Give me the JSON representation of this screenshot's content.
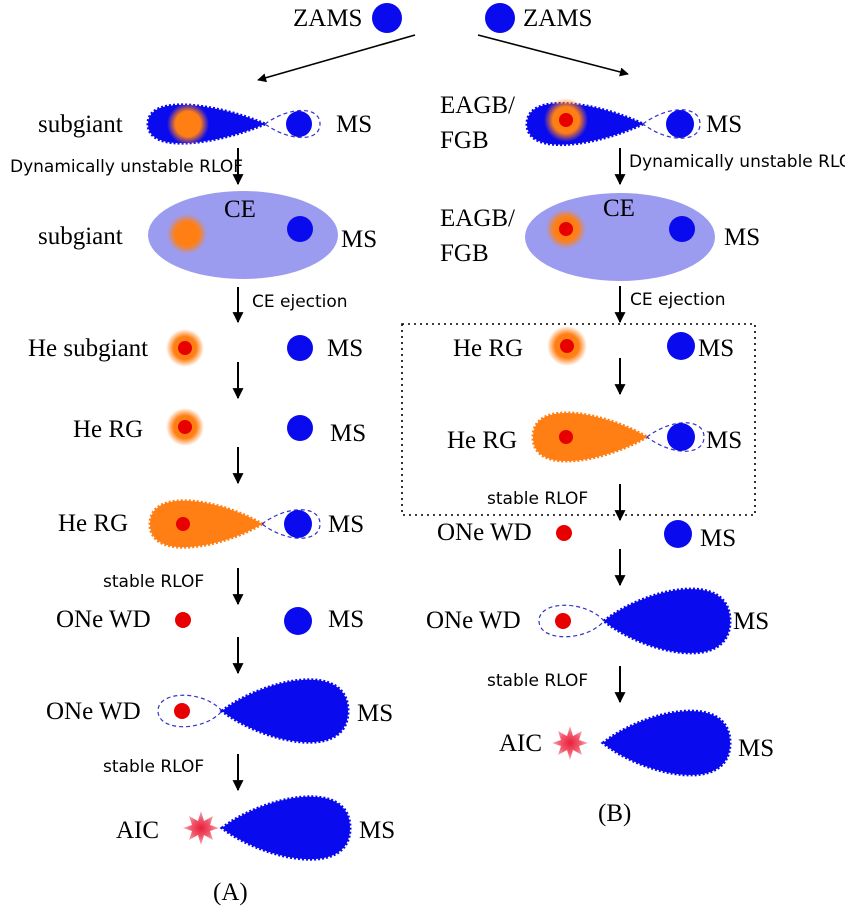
{
  "colors": {
    "ms_blue": "#0a0aee",
    "core_red": "#e80000",
    "envelope_orange": "#ff7f15",
    "ce_lavender": "#9b9bf0",
    "roche_dash": "#3232c8",
    "aic_pink": "#f04060"
  },
  "top": {
    "zams_left": "ZAMS",
    "zams_right": "ZAMS"
  },
  "channel_a": {
    "caption": "(A)",
    "s1": {
      "donor": "subgiant",
      "companion": "MS"
    },
    "t1": "Dynamically unstable RLOF",
    "s2": {
      "donor": "subgiant",
      "ce": "CE",
      "companion": "MS"
    },
    "t2": "CE ejection",
    "s3": {
      "donor": "He subgiant",
      "companion": "MS"
    },
    "s4": {
      "donor": "He RG",
      "companion": "MS"
    },
    "s5": {
      "donor": "He RG",
      "companion": "MS"
    },
    "t5": "stable RLOF",
    "s6": {
      "donor": "ONe WD",
      "companion": "MS"
    },
    "s7": {
      "donor": "ONe WD",
      "companion": "MS"
    },
    "t7": "stable RLOF",
    "s8": {
      "event": "AIC",
      "companion": "MS"
    }
  },
  "channel_b": {
    "caption": "(B)",
    "s1": {
      "donor_line1": "EAGB/",
      "donor_line2": "FGB",
      "companion": "MS"
    },
    "t1": "Dynamically unstable RLOF",
    "s2": {
      "donor_line1": "EAGB/",
      "donor_line2": "FGB",
      "ce": "CE",
      "companion": "MS"
    },
    "t2": "CE ejection",
    "s3": {
      "donor": "He RG",
      "companion": "MS"
    },
    "s4": {
      "donor": "He RG",
      "companion": "MS"
    },
    "t4": "stable RLOF",
    "s5": {
      "donor": "ONe WD",
      "companion": "MS"
    },
    "s6": {
      "donor": "ONe WD",
      "companion": "MS"
    },
    "t6": "stable RLOF",
    "s7": {
      "event": "AIC",
      "companion": "MS"
    }
  }
}
